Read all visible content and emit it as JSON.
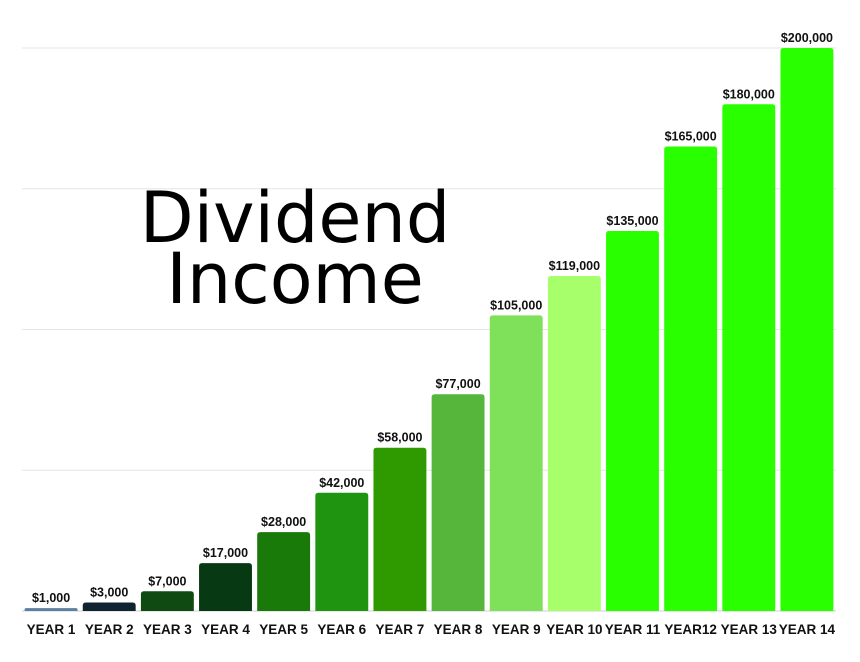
{
  "chart_data": {
    "type": "bar",
    "title_lines": [
      "Dividend",
      "Income"
    ],
    "categories": [
      "YEAR 1",
      "YEAR 2",
      "YEAR 3",
      "YEAR 4",
      "YEAR 5",
      "YEAR 6",
      "YEAR 7",
      "YEAR 8",
      "YEAR 9",
      "YEAR 10",
      "YEAR 11",
      "YEAR12",
      "YEAR 13",
      "YEAR 14"
    ],
    "values": [
      1000,
      3000,
      7000,
      17000,
      28000,
      42000,
      58000,
      77000,
      105000,
      119000,
      135000,
      165000,
      180000,
      200000
    ],
    "value_labels": [
      "$1,000",
      "$3,000",
      "$7,000",
      "$17,000",
      "$28,000",
      "$42,000",
      "$58,000",
      "$77,000",
      "$105,000",
      "$119,000",
      "$135,000",
      "$165,000",
      "$180,000",
      "$200,000"
    ],
    "bar_colors": [
      "#5b7fa3",
      "#0f2430",
      "#0f4a12",
      "#073a12",
      "#197a0a",
      "#1f9410",
      "#2e9a00",
      "#56b63b",
      "#7fe15a",
      "#a7ff6c",
      "#2aff00",
      "#2aff00",
      "#2aff00",
      "#2aff00"
    ],
    "ylim": [
      0,
      200000
    ],
    "gridlines": [
      0,
      50000,
      100000,
      150000,
      200000
    ],
    "grid": true,
    "legend": "none",
    "xlabel": "",
    "ylabel": ""
  }
}
